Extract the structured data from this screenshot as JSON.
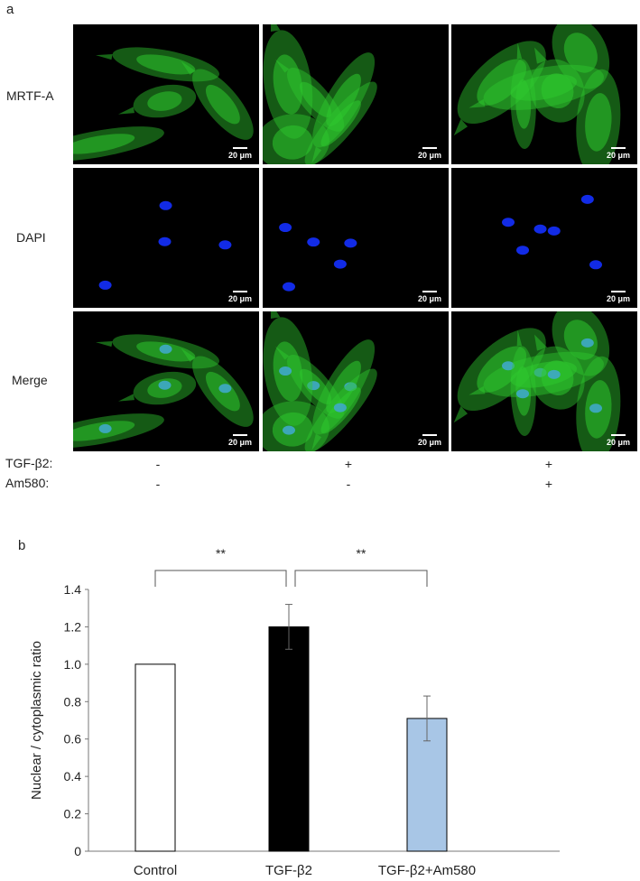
{
  "figure": {
    "panel_a_label": "a",
    "panel_b_label": "b",
    "rows": [
      {
        "label": "MRTF-A",
        "channel": "green"
      },
      {
        "label": "DAPI",
        "channel": "blue"
      },
      {
        "label": "Merge",
        "channel": "merge"
      }
    ],
    "scale_bar_text": "20 μm",
    "conditions": [
      {
        "label": "TGF-β2:",
        "values": [
          "-",
          "+",
          "+"
        ]
      },
      {
        "label": "Am580:",
        "values": [
          "-",
          "-",
          "+"
        ]
      }
    ],
    "colors": {
      "mrtf": "#2ec82e",
      "dapi": "#1430ff",
      "background": "#000000"
    }
  },
  "chart_data": {
    "type": "bar",
    "categories": [
      "Control",
      "TGF-β2",
      "TGF-β2+Am580"
    ],
    "values": [
      1.0,
      1.2,
      0.71
    ],
    "errors": [
      0.0,
      0.12,
      0.12
    ],
    "bar_colors": [
      "#ffffff",
      "#000000",
      "#a8c6e6"
    ],
    "ylabel": "Nuclear / cytoplasmic ratio",
    "xlabel": "",
    "ylim": [
      0,
      1.4
    ],
    "yticks": [
      "0",
      "0.2",
      "0.4",
      "0.6",
      "0.8",
      "1.0",
      "1.2",
      "1.4"
    ],
    "significance": [
      {
        "from": 0,
        "to": 1,
        "label": "**"
      },
      {
        "from": 1,
        "to": 2,
        "label": "**"
      }
    ],
    "grid": false
  }
}
